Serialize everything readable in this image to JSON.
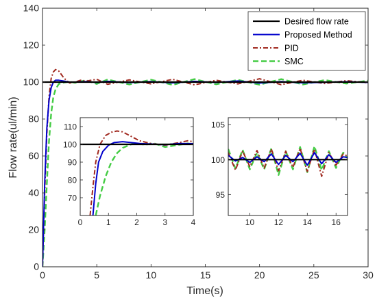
{
  "chart_data": {
    "type": "line",
    "xlabel": "Time(s)",
    "ylabel": "Flow rate(ul/min)",
    "xlim": [
      0,
      30
    ],
    "ylim": [
      0,
      140
    ],
    "xticks": [
      0,
      5,
      10,
      15,
      20,
      25,
      30
    ],
    "yticks": [
      0,
      20,
      40,
      60,
      80,
      100,
      120,
      140
    ],
    "grid": false,
    "legend_position": "top-right",
    "colors": {
      "desired": "#000000",
      "proposed": "#0000cc",
      "pid": "#a0281e",
      "smc": "#44cc44"
    },
    "series": [
      {
        "name": "Desired flow rate",
        "key": "desired",
        "style": "solid",
        "x": [
          0,
          30
        ],
        "y": [
          100,
          100
        ]
      },
      {
        "name": "Proposed Method",
        "key": "proposed",
        "style": "solid",
        "x": [
          0,
          0.2,
          0.4,
          0.6,
          0.8,
          1.0,
          1.2,
          1.5,
          2,
          2.5,
          3,
          4,
          5,
          6,
          8,
          10,
          12,
          14,
          16,
          18,
          20,
          22,
          24,
          26,
          28,
          30
        ],
        "y": [
          0,
          45,
          75,
          90,
          97,
          100,
          101,
          101,
          100.5,
          100,
          100,
          100.3,
          99.8,
          100.4,
          99.7,
          100.3,
          99.6,
          100.4,
          99.8,
          100.6,
          99.5,
          100.3,
          99.6,
          99.9,
          100.2,
          99.8
        ]
      },
      {
        "name": "PID",
        "key": "pid",
        "style": "dashdot",
        "x": [
          0,
          0.2,
          0.4,
          0.6,
          0.8,
          1.0,
          1.2,
          1.5,
          2,
          2.5,
          3,
          3.5,
          4,
          5,
          6,
          8,
          10,
          12,
          14,
          16,
          18,
          20,
          22,
          24,
          26,
          28,
          30
        ],
        "y": [
          0,
          40,
          72,
          92,
          102,
          105.5,
          106.8,
          106,
          102,
          99.5,
          100,
          101,
          100.5,
          101.5,
          98.8,
          101.2,
          99,
          101.5,
          98.5,
          101,
          99,
          101.8,
          98.6,
          101,
          99.2,
          100.8,
          99.6
        ]
      },
      {
        "name": "SMC",
        "key": "smc",
        "style": "dashed",
        "x": [
          0,
          0.2,
          0.4,
          0.6,
          0.8,
          1.0,
          1.2,
          1.5,
          2,
          2.5,
          3,
          4,
          5,
          6,
          8,
          10,
          12,
          14,
          16,
          18,
          20,
          22,
          24,
          26,
          28,
          30
        ],
        "y": [
          0,
          20,
          45,
          68,
          83,
          92,
          96,
          99,
          99.8,
          100.2,
          99.6,
          101,
          99,
          101.4,
          98.7,
          101.3,
          98.5,
          101.6,
          98.8,
          101.2,
          98.6,
          101.6,
          98.7,
          101.1,
          99.2,
          100.8
        ]
      }
    ],
    "insets": [
      {
        "xlim": [
          0,
          4
        ],
        "ylim": [
          60,
          115
        ],
        "xticks": [
          0,
          1,
          2,
          3,
          4
        ],
        "yticks": [
          70,
          80,
          90,
          100,
          110
        ],
        "series": [
          {
            "key": "desired",
            "x": [
              0,
              4
            ],
            "y": [
              100,
              100
            ]
          },
          {
            "key": "proposed",
            "x": [
              0.45,
              0.55,
              0.65,
              0.8,
              1.0,
              1.2,
              1.5,
              1.8,
              2.1,
              2.5,
              3.0,
              3.5,
              4.0
            ],
            "y": [
              60,
              78,
              90,
              96,
              99.5,
              101,
              101.5,
              101,
              100.5,
              100.2,
              99.8,
              100.5,
              100.4
            ]
          },
          {
            "key": "pid",
            "x": [
              0.35,
              0.45,
              0.55,
              0.7,
              0.9,
              1.1,
              1.3,
              1.5,
              1.8,
              2.1,
              2.5,
              3.0,
              3.5,
              3.8,
              4.0
            ],
            "y": [
              60,
              76,
              90,
              100,
              105,
              106.8,
              107.5,
              107,
              104.5,
              102,
              100.5,
              99.5,
              101,
              102,
              101.5
            ]
          },
          {
            "key": "smc",
            "x": [
              0.55,
              0.7,
              0.9,
              1.1,
              1.3,
              1.5,
              1.8,
              2.0,
              2.3,
              2.6,
              3.0,
              3.4,
              3.8,
              4.0
            ],
            "y": [
              60,
              71,
              82,
              90,
              95,
              98,
              100,
              100.4,
              99.8,
              100.6,
              98.5,
              99.5,
              100.5,
              100
            ]
          }
        ]
      },
      {
        "xlim": [
          8.5,
          16.8
        ],
        "ylim": [
          92,
          106
        ],
        "xticks": [
          10,
          12,
          14,
          16
        ],
        "yticks": [
          95,
          100,
          105
        ],
        "series": [
          {
            "key": "desired",
            "x": [
              8.5,
              16.8
            ],
            "y": [
              100,
              100
            ]
          },
          {
            "key": "proposed",
            "x": [
              8.5,
              9,
              9.5,
              10,
              10.5,
              11,
              11.5,
              12,
              12.5,
              13,
              13.5,
              14,
              14.5,
              15,
              15.5,
              16,
              16.5,
              16.8
            ],
            "y": [
              100.6,
              99.8,
              100.3,
              99.6,
              100.4,
              99.7,
              100.8,
              99.3,
              100.6,
              99.7,
              100.9,
              99.2,
              101,
              99.4,
              100.7,
              99.6,
              100.4,
              100.3
            ]
          },
          {
            "key": "pid",
            "x": [
              8.5,
              9,
              9.5,
              10,
              10.5,
              11,
              11.5,
              12,
              12.5,
              13,
              13.5,
              14,
              14.5,
              15,
              15.5,
              16,
              16.5,
              16.8
            ],
            "y": [
              101,
              98.5,
              101.2,
              99,
              101.3,
              98.8,
              101.5,
              98.4,
              101.2,
              98.9,
              101.6,
              98.3,
              101.5,
              97.6,
              101,
              99.2,
              100.8,
              100.5
            ]
          },
          {
            "key": "smc",
            "x": [
              8.5,
              9,
              9.5,
              10,
              10.5,
              11,
              11.5,
              12,
              12.5,
              13,
              13.5,
              14,
              14.5,
              15,
              15.5,
              16,
              16.5,
              16.8
            ],
            "y": [
              101.5,
              98.7,
              101.4,
              98.6,
              101,
              98.6,
              101.6,
              97.8,
              101.2,
              98.6,
              101.8,
              98.2,
              101.9,
              98.5,
              101.2,
              98.8,
              101,
              100.2
            ]
          }
        ]
      }
    ]
  }
}
